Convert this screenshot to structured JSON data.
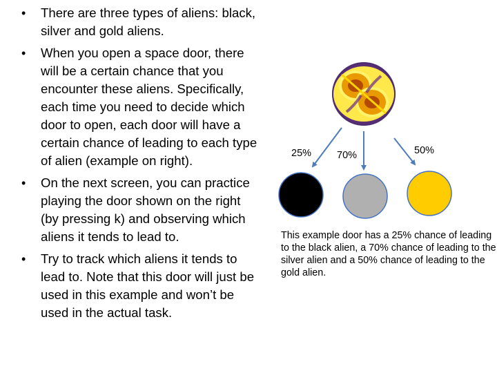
{
  "bullets": [
    "There are three types of aliens: black, silver and gold aliens.",
    "When you open a space door, there will be a certain chance that you encounter these aliens. Specifically, each time you need to decide which door to open, each door will have a certain chance of leading to each type of alien (example on right).",
    "On the next screen, you can practice playing the door shown on the right (by pressing k) and observing which aliens it tends to lead to.",
    "Try to track which aliens it tends to lead to. Note that this door will just be used in this example and won’t be used in the actual task."
  ],
  "bullet_glyph": "•",
  "diagram": {
    "door_icon": "space-door-icon",
    "outcomes": [
      {
        "name": "black",
        "pct_label": "25%",
        "probability": 0.25,
        "color": "#000000"
      },
      {
        "name": "silver",
        "pct_label": "70%",
        "probability": 0.7,
        "color": "#B0B0B0"
      },
      {
        "name": "gold",
        "pct_label": "50%",
        "probability": 0.5,
        "color": "#FFCC00"
      }
    ],
    "arrow_color": "#4F7CB8",
    "circle_stroke": "#4472C4"
  },
  "caption": "This example door has a 25% chance of leading to the black alien, a 70% chance of leading to the silver alien and a 50% chance of leading to the gold alien."
}
